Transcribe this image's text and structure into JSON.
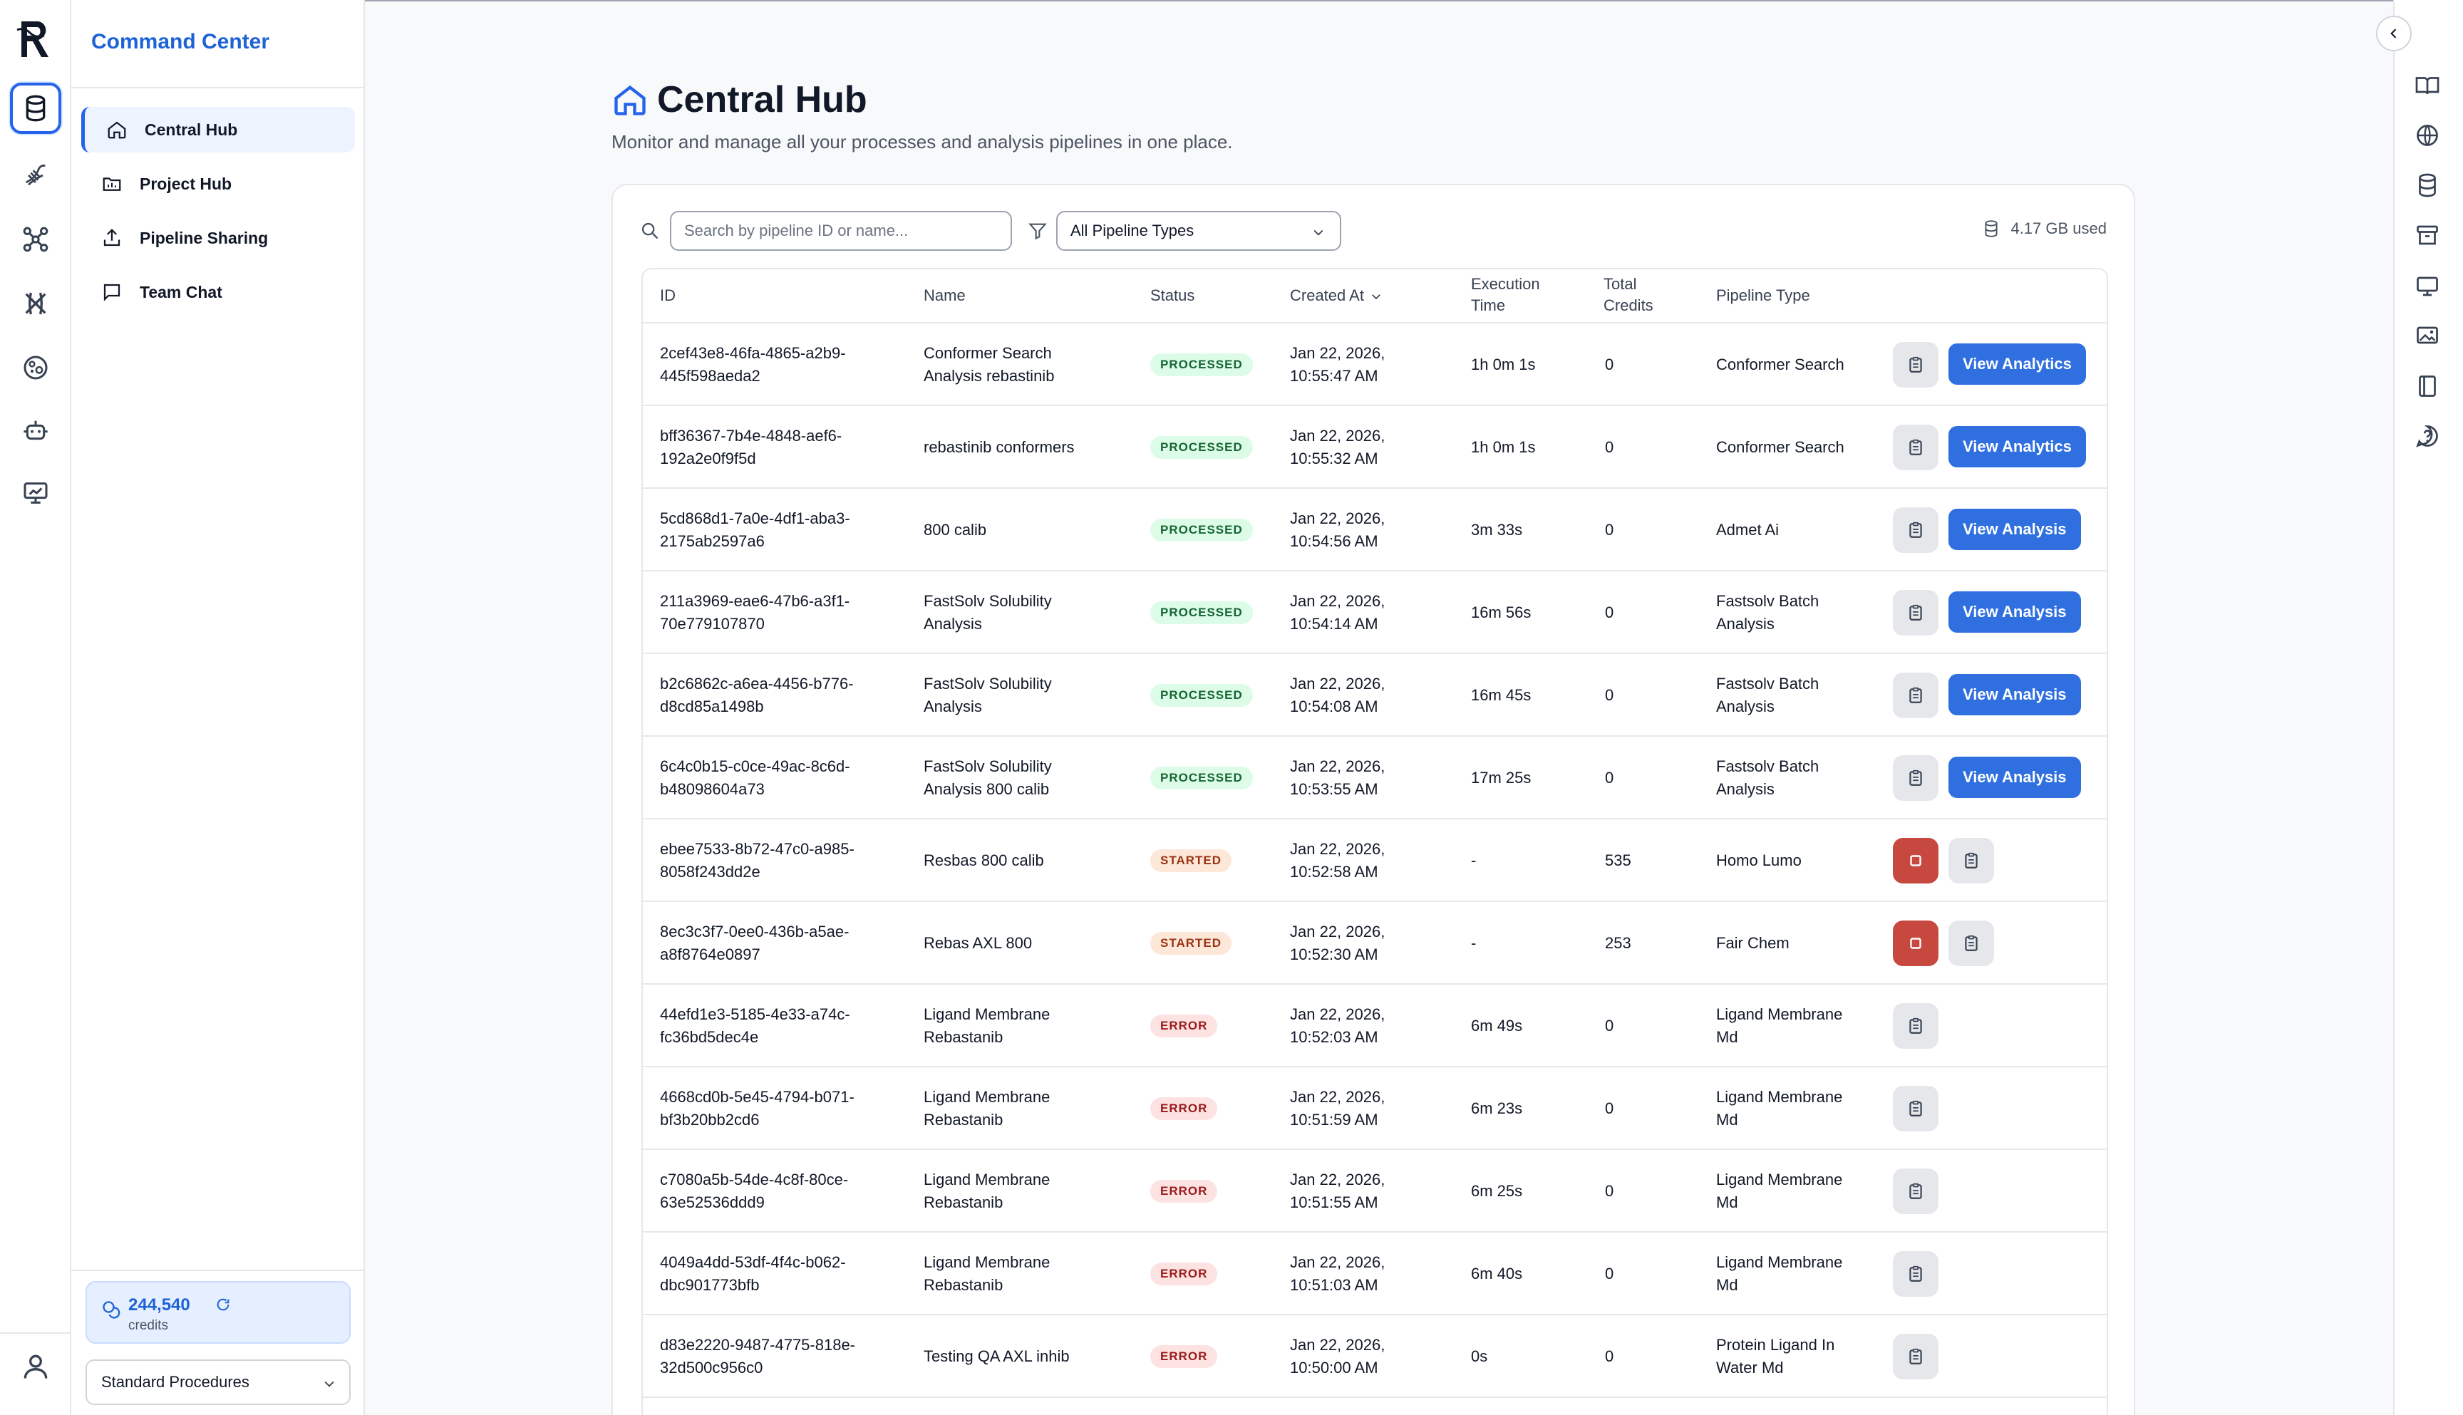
{
  "app": {
    "title": "Command Center"
  },
  "sidebar": {
    "items": [
      {
        "label": "Central Hub",
        "icon": "home-icon"
      },
      {
        "label": "Project Hub",
        "icon": "folder-icon"
      },
      {
        "label": "Pipeline Sharing",
        "icon": "share-icon"
      },
      {
        "label": "Team Chat",
        "icon": "chat-icon"
      }
    ],
    "credits_value": "244,540",
    "credits_label": "credits",
    "procedure_select": "Standard Procedures"
  },
  "page": {
    "title": "Central Hub",
    "subtitle": "Monitor and manage all your processes and analysis pipelines in one place."
  },
  "toolbar": {
    "search_placeholder": "Search by pipeline ID or name...",
    "type_filter": "All Pipeline Types",
    "storage": "4.17 GB used"
  },
  "table": {
    "headers": {
      "id": "ID",
      "name": "Name",
      "status": "Status",
      "created": "Created At",
      "exec_1": "Execution",
      "exec_2": "Time",
      "credits_1": "Total",
      "credits_2": "Credits",
      "type": "Pipeline Type"
    },
    "rows": [
      {
        "id1": "2cef43e8-46fa-4865-a2b9-",
        "id2": "445f598aeda2",
        "name1": "Conformer Search",
        "name2": "Analysis rebastinib",
        "status": "PROCESSED",
        "date1": "Jan 22, 2026,",
        "date2": "10:55:47 AM",
        "exec": "1h 0m 1s",
        "credits": "0",
        "type1": "Conformer Search",
        "type2": "",
        "action": "View Analytics"
      },
      {
        "id1": "bff36367-7b4e-4848-aef6-",
        "id2": "192a2e0f9f5d",
        "name1": "rebastinib conformers",
        "name2": "",
        "status": "PROCESSED",
        "date1": "Jan 22, 2026,",
        "date2": "10:55:32 AM",
        "exec": "1h 0m 1s",
        "credits": "0",
        "type1": "Conformer Search",
        "type2": "",
        "action": "View Analytics"
      },
      {
        "id1": "5cd868d1-7a0e-4df1-aba3-",
        "id2": "2175ab2597a6",
        "name1": "800 calib",
        "name2": "",
        "status": "PROCESSED",
        "date1": "Jan 22, 2026,",
        "date2": "10:54:56 AM",
        "exec": "3m 33s",
        "credits": "0",
        "type1": "Admet Ai",
        "type2": "",
        "action": "View Analysis"
      },
      {
        "id1": "211a3969-eae6-47b6-a3f1-",
        "id2": "70e779107870",
        "name1": "FastSolv Solubility",
        "name2": "Analysis",
        "status": "PROCESSED",
        "date1": "Jan 22, 2026,",
        "date2": "10:54:14 AM",
        "exec": "16m 56s",
        "credits": "0",
        "type1": "Fastsolv Batch",
        "type2": "Analysis",
        "action": "View Analysis"
      },
      {
        "id1": "b2c6862c-a6ea-4456-b776-",
        "id2": "d8cd85a1498b",
        "name1": "FastSolv Solubility",
        "name2": "Analysis",
        "status": "PROCESSED",
        "date1": "Jan 22, 2026,",
        "date2": "10:54:08 AM",
        "exec": "16m 45s",
        "credits": "0",
        "type1": "Fastsolv Batch",
        "type2": "Analysis",
        "action": "View Analysis"
      },
      {
        "id1": "6c4c0b15-c0ce-49ac-8c6d-",
        "id2": "b48098604a73",
        "name1": "FastSolv Solubility",
        "name2": "Analysis 800 calib",
        "status": "PROCESSED",
        "date1": "Jan 22, 2026,",
        "date2": "10:53:55 AM",
        "exec": "17m 25s",
        "credits": "0",
        "type1": "Fastsolv Batch",
        "type2": "Analysis",
        "action": "View Analysis"
      },
      {
        "id1": "ebee7533-8b72-47c0-a985-",
        "id2": "8058f243dd2e",
        "name1": "Resbas 800 calib",
        "name2": "",
        "status": "STARTED",
        "date1": "Jan 22, 2026,",
        "date2": "10:52:58 AM",
        "exec": "-",
        "credits": "535",
        "type1": "Homo Lumo",
        "type2": "",
        "action": ""
      },
      {
        "id1": "8ec3c3f7-0ee0-436b-a5ae-",
        "id2": "a8f8764e0897",
        "name1": "Rebas AXL 800",
        "name2": "",
        "status": "STARTED",
        "date1": "Jan 22, 2026,",
        "date2": "10:52:30 AM",
        "exec": "-",
        "credits": "253",
        "type1": "Fair Chem",
        "type2": "",
        "action": ""
      },
      {
        "id1": "44efd1e3-5185-4e33-a74c-",
        "id2": "fc36bd5dec4e",
        "name1": "Ligand Membrane",
        "name2": "Rebastanib",
        "status": "ERROR",
        "date1": "Jan 22, 2026,",
        "date2": "10:52:03 AM",
        "exec": "6m 49s",
        "credits": "0",
        "type1": "Ligand Membrane",
        "type2": "Md",
        "action": ""
      },
      {
        "id1": "4668cd0b-5e45-4794-b071-",
        "id2": "bf3b20bb2cd6",
        "name1": "Ligand Membrane",
        "name2": "Rebastanib",
        "status": "ERROR",
        "date1": "Jan 22, 2026,",
        "date2": "10:51:59 AM",
        "exec": "6m 23s",
        "credits": "0",
        "type1": "Ligand Membrane",
        "type2": "Md",
        "action": ""
      },
      {
        "id1": "c7080a5b-54de-4c8f-80ce-",
        "id2": "63e52536ddd9",
        "name1": "Ligand Membrane",
        "name2": "Rebastanib",
        "status": "ERROR",
        "date1": "Jan 22, 2026,",
        "date2": "10:51:55 AM",
        "exec": "6m 25s",
        "credits": "0",
        "type1": "Ligand Membrane",
        "type2": "Md",
        "action": ""
      },
      {
        "id1": "4049a4dd-53df-4f4c-b062-",
        "id2": "dbc901773bfb",
        "name1": "Ligand Membrane",
        "name2": "Rebastanib",
        "status": "ERROR",
        "date1": "Jan 22, 2026,",
        "date2": "10:51:03 AM",
        "exec": "6m 40s",
        "credits": "0",
        "type1": "Ligand Membrane",
        "type2": "Md",
        "action": ""
      },
      {
        "id1": "d83e2220-9487-4775-818e-",
        "id2": "32d500c956c0",
        "name1": "Testing QA AXL inhib",
        "name2": "",
        "status": "ERROR",
        "date1": "Jan 22, 2026,",
        "date2": "10:50:00 AM",
        "exec": "0s",
        "credits": "0",
        "type1": "Protein Ligand In",
        "type2": "Water Md",
        "action": ""
      }
    ]
  },
  "colors": {
    "accent": "#2f6fdf",
    "brand_text": "#1d63d8",
    "stop": "#c6483f"
  }
}
